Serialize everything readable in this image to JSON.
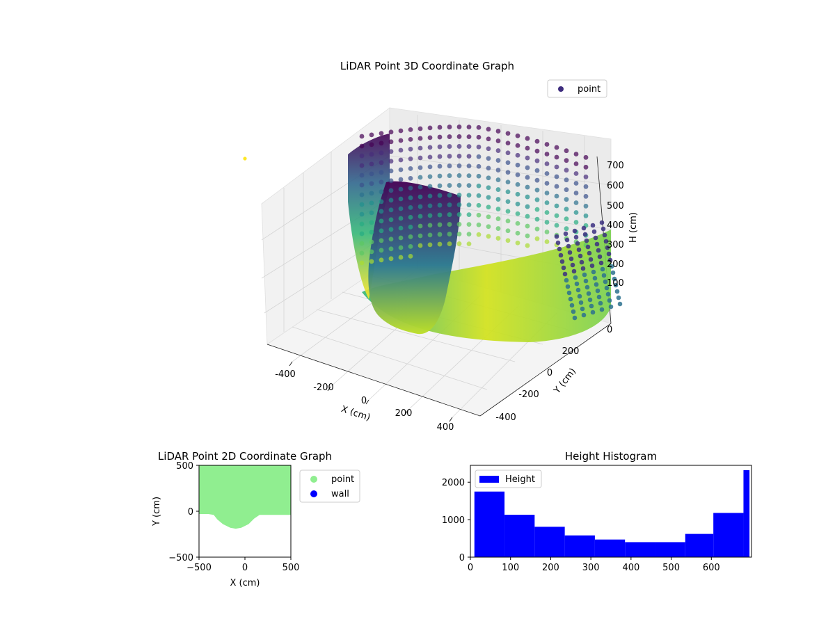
{
  "chart_data": [
    {
      "type": "scatter3d",
      "title": "LiDAR Point 3D Coordinate Graph",
      "xlabel": "X (cm)",
      "ylabel": "Y (cm)",
      "zlabel": "H (cm)",
      "xlim": [
        -500,
        500
      ],
      "ylim": [
        -500,
        500
      ],
      "zlim": [
        0,
        700
      ],
      "xticks": [
        "-400",
        "-200",
        "0",
        "200",
        "400"
      ],
      "yticks": [
        "-400",
        "-200",
        "0",
        "200"
      ],
      "zticks": [
        "0",
        "100",
        "200",
        "300",
        "400",
        "500",
        "600",
        "700"
      ],
      "zticklabels": [
        "0",
        "100",
        "200",
        "300",
        "400",
        "500",
        "600",
        "700"
      ],
      "legend": {
        "placement": "top-right",
        "entries": [
          {
            "name": "point",
            "color": "#3e2d7e"
          }
        ]
      },
      "colormap": "viridis",
      "grid": true
    },
    {
      "type": "scatter",
      "title": "LiDAR Point 2D Coordinate Graph",
      "xlabel": "X (cm)",
      "ylabel": "Y (cm)",
      "xlim": [
        -500,
        500
      ],
      "ylim": [
        -500,
        500
      ],
      "xticks": [
        -500,
        0,
        500
      ],
      "yticks": [
        -500,
        0,
        500
      ],
      "xticklabels": [
        "−500",
        "0",
        "500"
      ],
      "yticklabels": [
        "−500",
        "0",
        "500"
      ],
      "series": [
        {
          "name": "point",
          "color": "#90ee90",
          "outline": [
            [
              -500,
              500
            ],
            [
              500,
              500
            ],
            [
              500,
              -40
            ],
            [
              160,
              -40
            ],
            [
              100,
              -80
            ],
            [
              40,
              -140
            ],
            [
              -40,
              -180
            ],
            [
              -100,
              -190
            ],
            [
              -160,
              -180
            ],
            [
              -240,
              -140
            ],
            [
              -300,
              -90
            ],
            [
              -340,
              -40
            ],
            [
              -400,
              -30
            ],
            [
              -500,
              -30
            ]
          ]
        },
        {
          "name": "wall",
          "color": "#0000ff",
          "outline": []
        }
      ],
      "legend": {
        "placement": "outside-right"
      }
    },
    {
      "type": "bar",
      "title": "Height Histogram",
      "series_name": "Height",
      "color": "#0000ff",
      "bin_edges": [
        10,
        85,
        160,
        235,
        310,
        385,
        460,
        535,
        605,
        680,
        695
      ],
      "values": [
        1750,
        1130,
        810,
        580,
        470,
        400,
        400,
        620,
        1180,
        2320
      ],
      "xlim": [
        0,
        700
      ],
      "ylim": [
        0,
        2450
      ],
      "xticks": [
        0,
        100,
        200,
        300,
        400,
        500,
        600
      ],
      "yticks": [
        0,
        1000,
        2000
      ],
      "legend": {
        "placement": "top-left"
      }
    }
  ]
}
